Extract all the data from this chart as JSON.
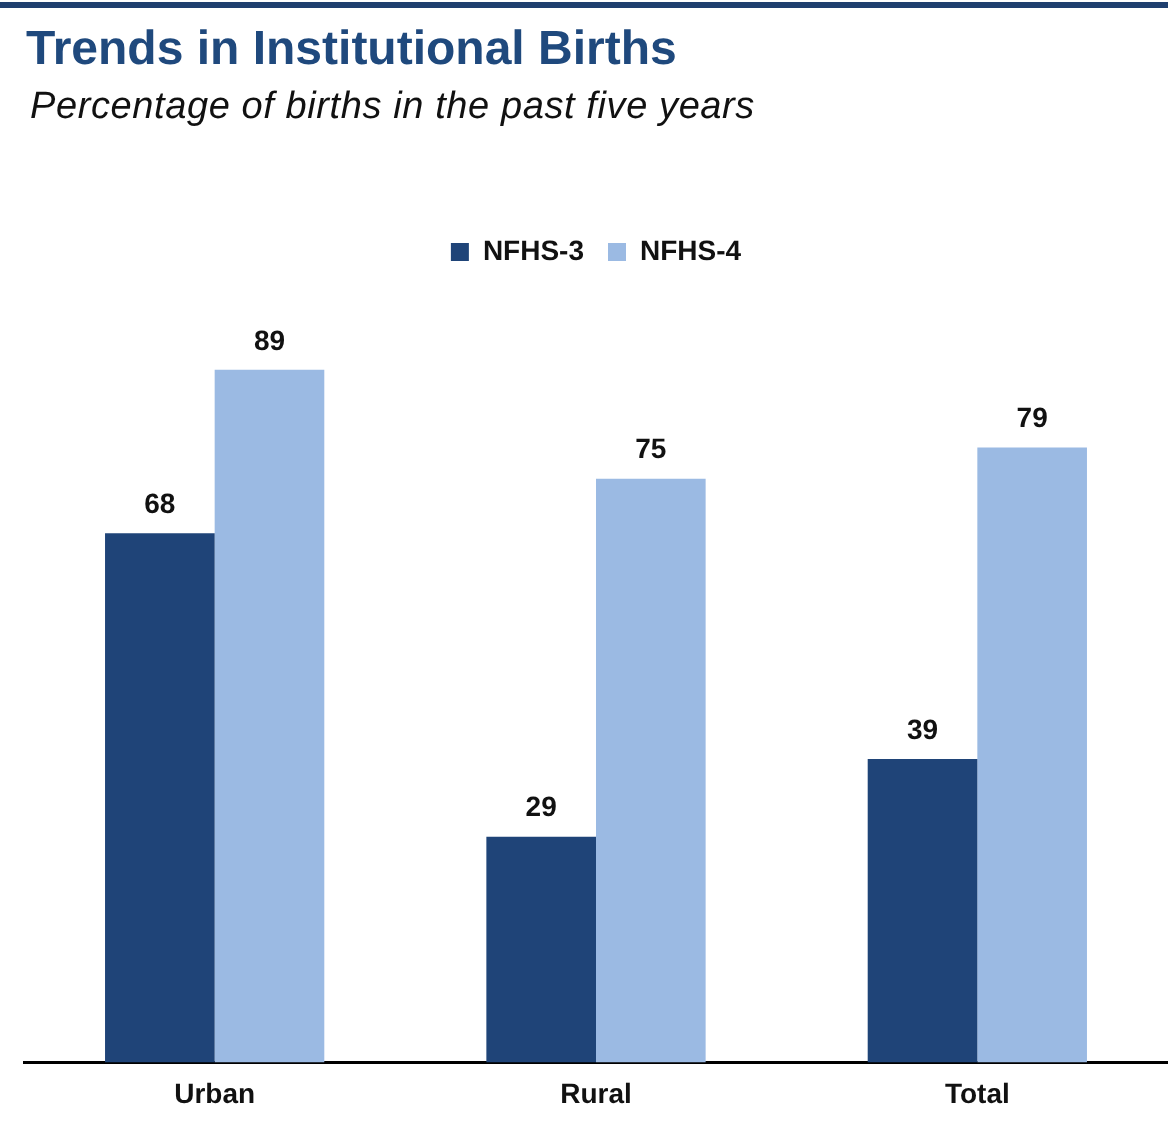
{
  "chart_data": {
    "type": "bar",
    "title": "Trends in Institutional Births",
    "subtitle": "Percentage of births in the past five years",
    "categories": [
      "Urban",
      "Rural",
      "Total"
    ],
    "series": [
      {
        "name": "NFHS-3",
        "color": "#1f4478",
        "values": [
          68,
          29,
          39
        ]
      },
      {
        "name": "NFHS-4",
        "color": "#9bbae3",
        "values": [
          89,
          75,
          79
        ]
      }
    ],
    "data_labels": true,
    "legend": "top",
    "grid": false,
    "tick_labels": "x"
  }
}
